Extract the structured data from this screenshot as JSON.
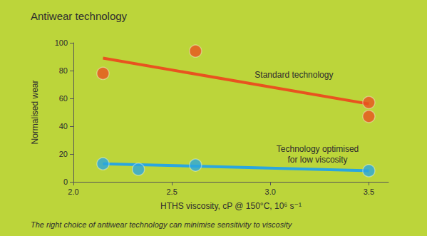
{
  "chart_data": {
    "type": "scatter",
    "title": "Antiwear technology",
    "subtitle": "The right choice of antiwear technology can minimise sensitivity to viscosity",
    "x_label": "HTHS viscosity, cP @ 150°C, 10⁶ s⁻¹",
    "y_label": "Normalised wear",
    "xlim": [
      2.0,
      3.6
    ],
    "xticks": [
      {
        "value": 2.0,
        "label": "2.0"
      },
      2.5,
      {
        "value": 3.0,
        "label": "3.0"
      },
      3.5
    ],
    "ylim": [
      0,
      100
    ],
    "yticks": [
      0,
      20,
      40,
      60,
      80,
      100
    ],
    "grid": false,
    "series": [
      {
        "name": "Standard technology",
        "type": "scatter",
        "marker": "circle",
        "color": "#e8531f",
        "x": [
          2.15,
          2.62,
          3.5,
          3.5
        ],
        "values": [
          78,
          94,
          57,
          47
        ]
      },
      {
        "type": "line",
        "line_style": "solid",
        "color": "#e8531f",
        "x": [
          2.15,
          3.5
        ],
        "values": [
          89,
          56
        ]
      },
      {
        "name": "Technology optimised\nfor low viscosity",
        "type": "scatter",
        "marker": "circle",
        "color": "#2aa6df",
        "x": [
          2.15,
          2.33,
          2.62,
          3.5
        ],
        "values": [
          13,
          9,
          12,
          8
        ]
      },
      {
        "type": "line",
        "line_style": "solid",
        "color": "#2aa6df",
        "x": [
          2.15,
          3.5
        ],
        "values": [
          13,
          8
        ]
      }
    ]
  }
}
